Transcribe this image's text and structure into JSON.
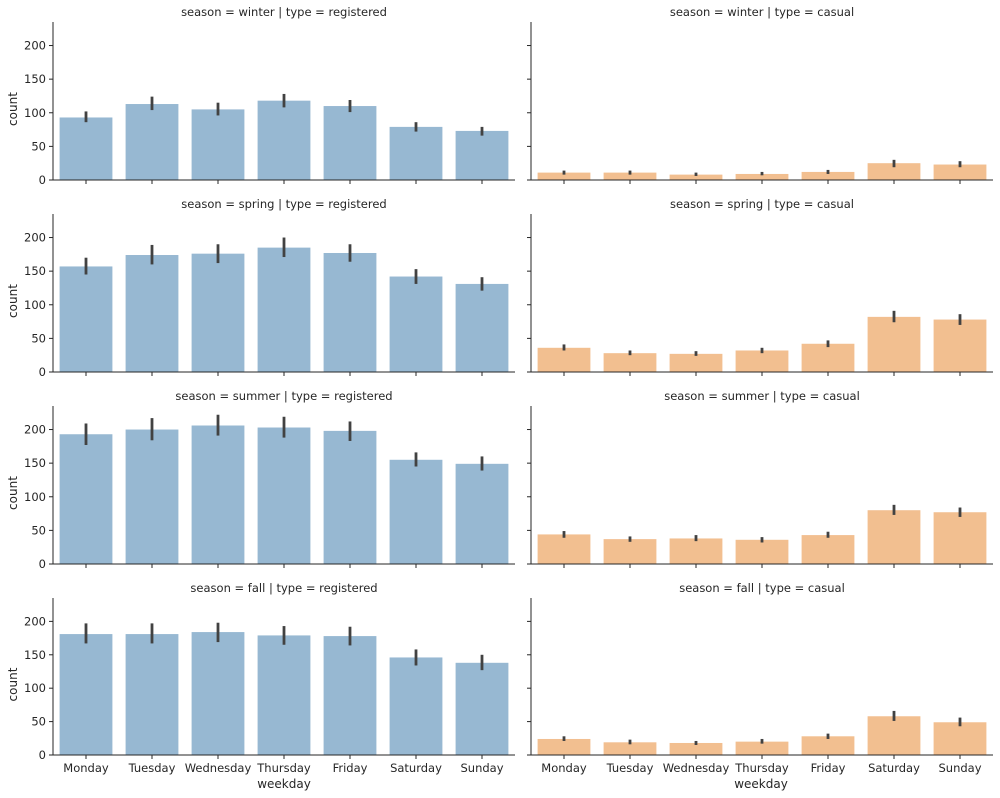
{
  "chart_data": {
    "type": "bar",
    "grid": false,
    "xlabel": "weekday",
    "ylabel": "count",
    "ylim": [
      0,
      235
    ],
    "yticks": [
      0,
      50,
      100,
      150,
      200
    ],
    "categories": [
      "Monday",
      "Tuesday",
      "Wednesday",
      "Thursday",
      "Friday",
      "Saturday",
      "Sunday"
    ],
    "colors": {
      "registered": "#97b8d2",
      "casual": "#f2bf90",
      "errbar": "#424242",
      "text": "#262626"
    },
    "facets": [
      {
        "season": "winter",
        "type": "registered",
        "title": "season = winter | type = registered",
        "values": [
          93,
          113,
          105,
          118,
          110,
          79,
          73
        ],
        "ci": [
          [
            86,
            102
          ],
          [
            104,
            124
          ],
          [
            96,
            115
          ],
          [
            108,
            128
          ],
          [
            101,
            119
          ],
          [
            72,
            86
          ],
          [
            66,
            79
          ]
        ]
      },
      {
        "season": "winter",
        "type": "casual",
        "title": "season = winter | type = casual",
        "values": [
          11,
          11,
          8,
          9,
          12,
          25,
          23
        ],
        "ci": [
          [
            8,
            14
          ],
          [
            8,
            14
          ],
          [
            6,
            11
          ],
          [
            7,
            12
          ],
          [
            9,
            15
          ],
          [
            19,
            30
          ],
          [
            19,
            28
          ]
        ]
      },
      {
        "season": "spring",
        "type": "registered",
        "title": "season = spring | type = registered",
        "values": [
          157,
          174,
          176,
          185,
          177,
          142,
          131
        ],
        "ci": [
          [
            145,
            170
          ],
          [
            160,
            189
          ],
          [
            162,
            190
          ],
          [
            171,
            200
          ],
          [
            164,
            190
          ],
          [
            131,
            153
          ],
          [
            121,
            141
          ]
        ]
      },
      {
        "season": "spring",
        "type": "casual",
        "title": "season = spring | type = casual",
        "values": [
          36,
          28,
          27,
          32,
          42,
          82,
          78
        ],
        "ci": [
          [
            32,
            41
          ],
          [
            25,
            32
          ],
          [
            24,
            31
          ],
          [
            28,
            36
          ],
          [
            37,
            47
          ],
          [
            74,
            91
          ],
          [
            70,
            86
          ]
        ]
      },
      {
        "season": "summer",
        "type": "registered",
        "title": "season = summer | type = registered",
        "values": [
          193,
          200,
          206,
          203,
          198,
          155,
          149
        ],
        "ci": [
          [
            177,
            209
          ],
          [
            184,
            217
          ],
          [
            191,
            222
          ],
          [
            188,
            219
          ],
          [
            183,
            212
          ],
          [
            145,
            166
          ],
          [
            139,
            160
          ]
        ]
      },
      {
        "season": "summer",
        "type": "casual",
        "title": "season = summer | type = casual",
        "values": [
          44,
          37,
          38,
          36,
          43,
          80,
          77
        ],
        "ci": [
          [
            39,
            49
          ],
          [
            33,
            41
          ],
          [
            34,
            43
          ],
          [
            32,
            40
          ],
          [
            39,
            48
          ],
          [
            73,
            88
          ],
          [
            70,
            84
          ]
        ]
      },
      {
        "season": "fall",
        "type": "registered",
        "title": "season = fall | type = registered",
        "values": [
          181,
          181,
          184,
          179,
          178,
          146,
          138
        ],
        "ci": [
          [
            167,
            197
          ],
          [
            167,
            197
          ],
          [
            169,
            198
          ],
          [
            165,
            193
          ],
          [
            164,
            192
          ],
          [
            134,
            158
          ],
          [
            127,
            150
          ]
        ]
      },
      {
        "season": "fall",
        "type": "casual",
        "title": "season = fall | type = casual",
        "values": [
          24,
          19,
          18,
          20,
          28,
          58,
          49
        ],
        "ci": [
          [
            21,
            28
          ],
          [
            16,
            23
          ],
          [
            15,
            21
          ],
          [
            17,
            24
          ],
          [
            24,
            32
          ],
          [
            51,
            66
          ],
          [
            43,
            56
          ]
        ]
      }
    ]
  }
}
